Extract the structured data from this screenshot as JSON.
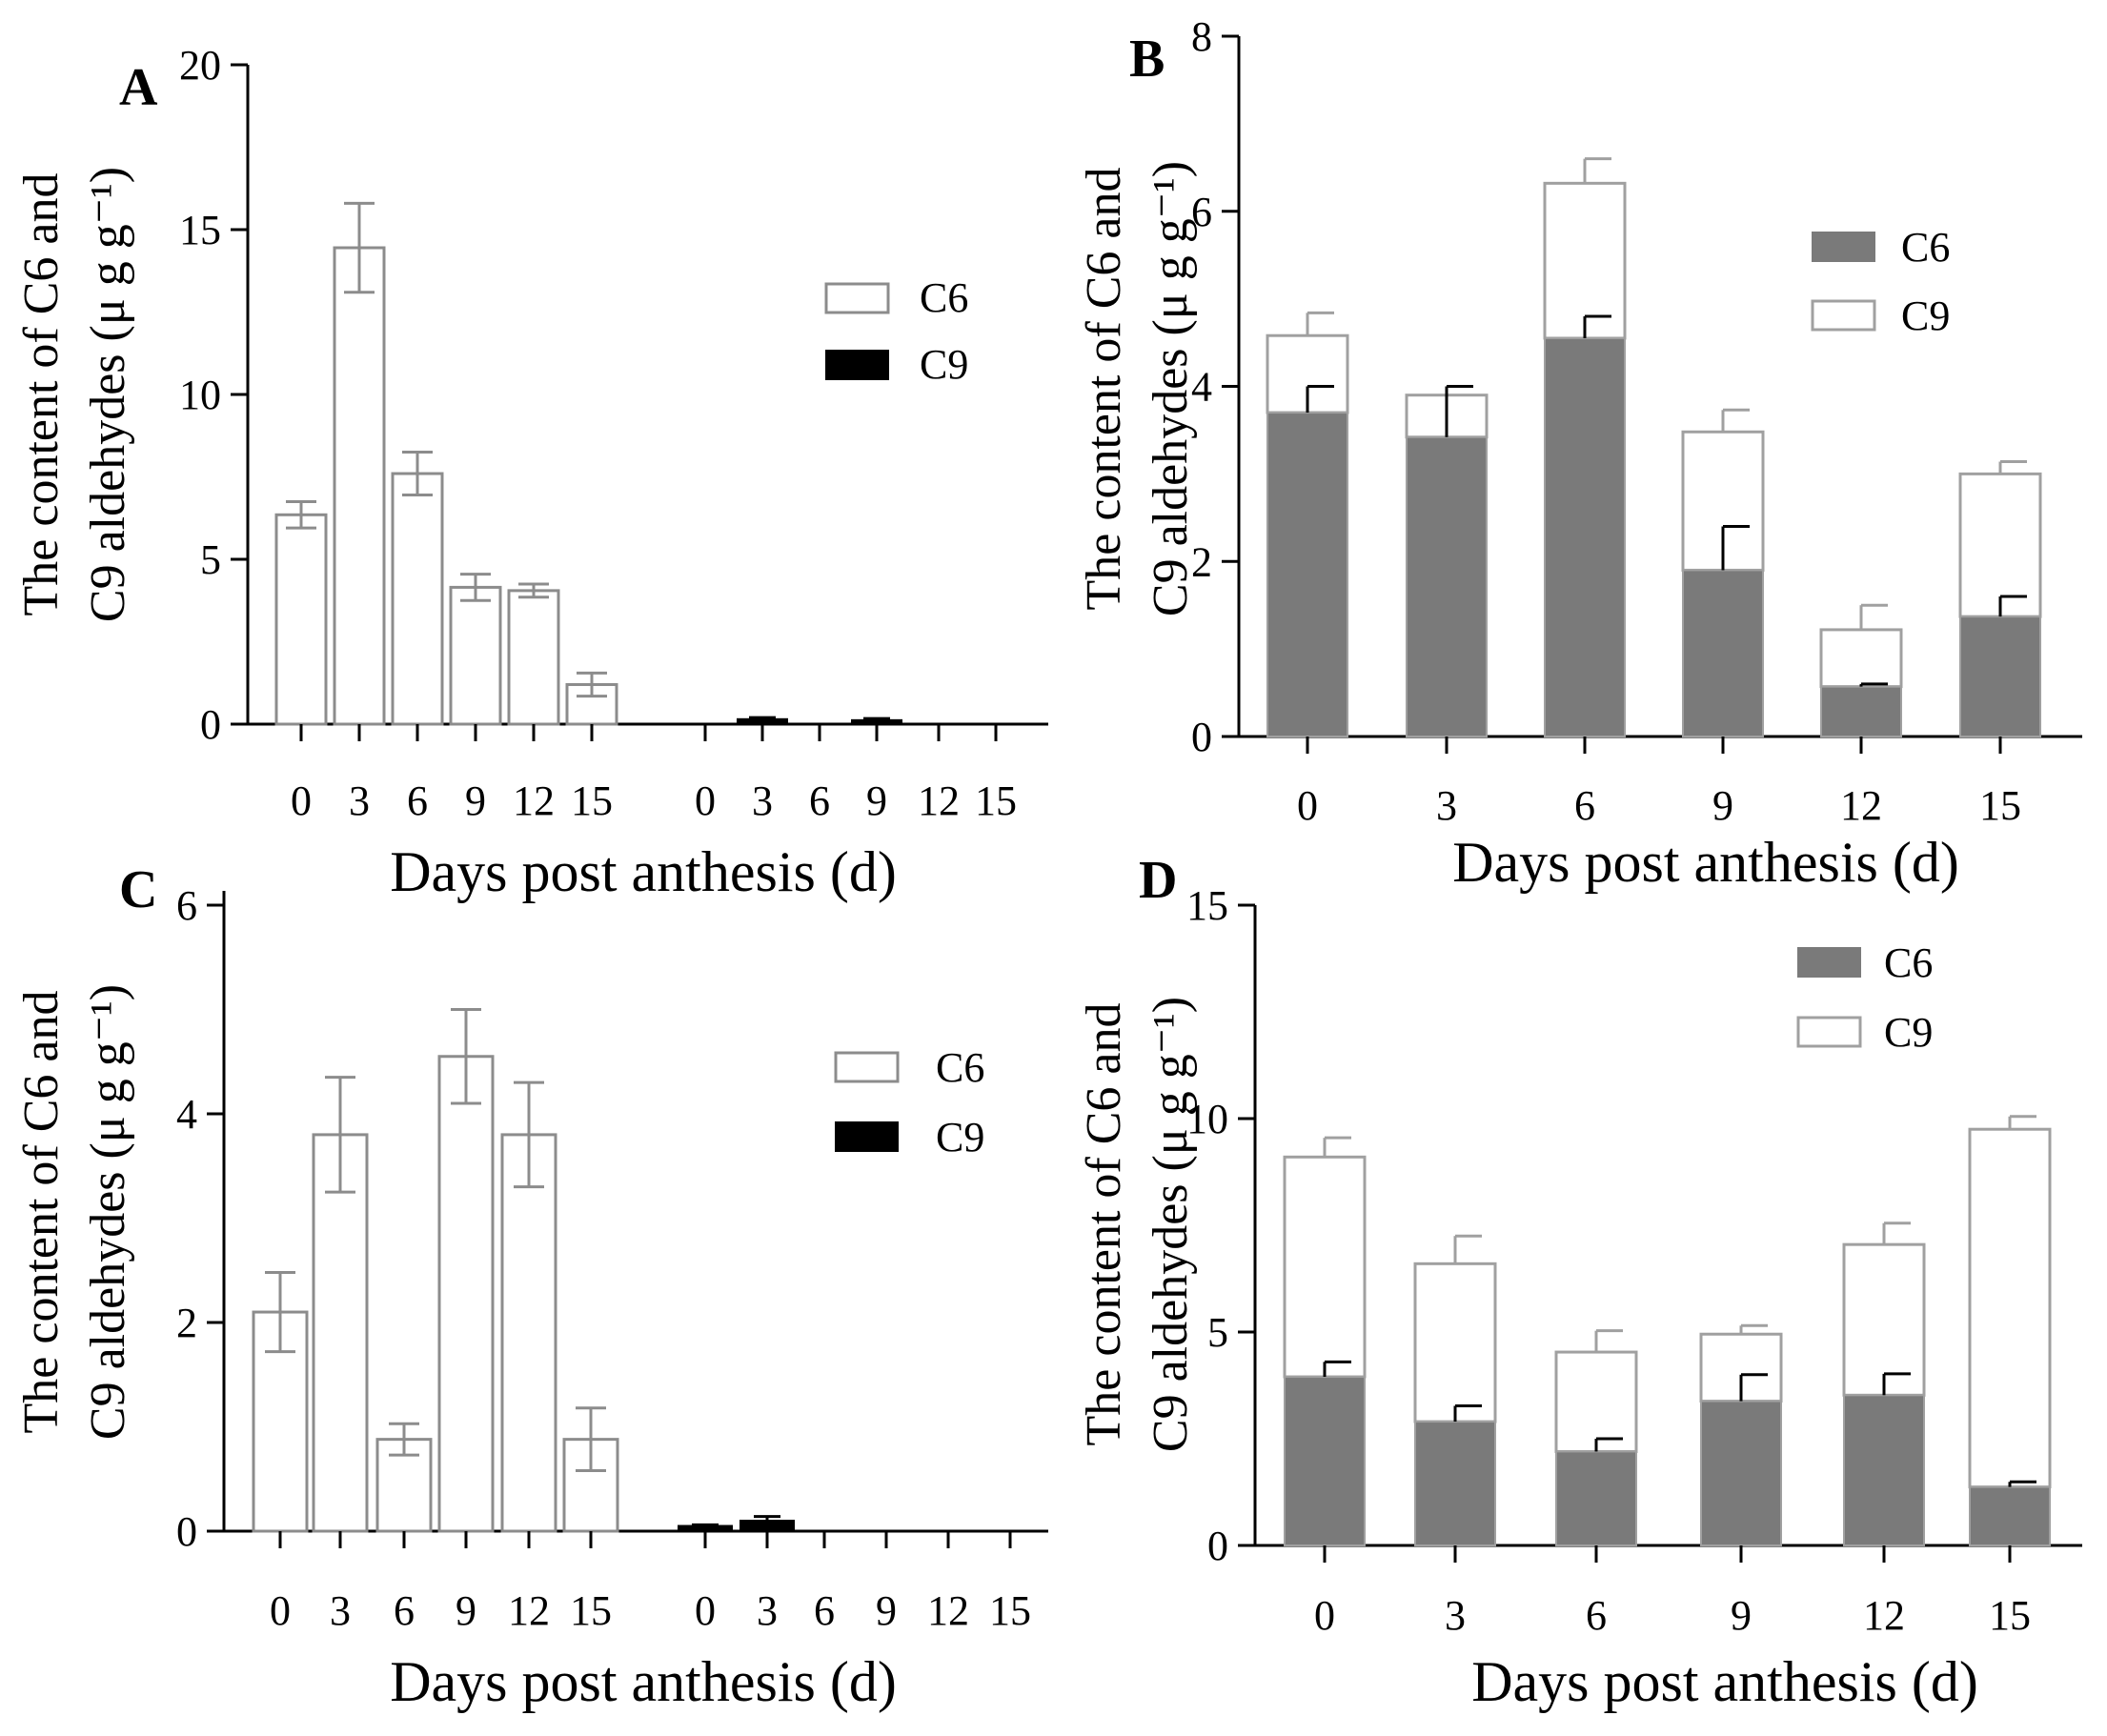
{
  "chart_data": [
    {
      "panel": "A",
      "type": "bar",
      "mode": "grouped",
      "title": "",
      "xlabel": "Days post anthesis (d)",
      "ylabel_line1": "The content of C6 and",
      "ylabel_line2": "C9 aldehydes (μ g g⁻¹)",
      "ylim": [
        0,
        20
      ],
      "yticks": [
        0,
        5,
        10,
        15,
        20
      ],
      "categories": [
        "0",
        "3",
        "6",
        "9",
        "12",
        "15"
      ],
      "series": [
        {
          "name": "C6",
          "values": [
            6.35,
            14.45,
            7.6,
            4.15,
            4.05,
            1.2
          ],
          "errors": [
            0.4,
            1.35,
            0.65,
            0.4,
            0.2,
            0.35
          ]
        },
        {
          "name": "C9",
          "values": [
            0,
            0.15,
            0,
            0.12,
            0,
            0
          ],
          "errors": [
            0,
            0.05,
            0,
            0.05,
            0,
            0
          ]
        }
      ],
      "legend": [
        "C6",
        "C9"
      ]
    },
    {
      "panel": "B",
      "type": "bar",
      "mode": "stacked",
      "title": "",
      "xlabel": "Days post anthesis (d)",
      "ylabel_line1": "The content of C6 and",
      "ylabel_line2": "C9 aldehydes (μ g g⁻¹)",
      "ylim": [
        0,
        8
      ],
      "yticks": [
        0,
        2,
        4,
        6,
        8
      ],
      "categories": [
        "0",
        "3",
        "6",
        "9",
        "12",
        "15"
      ],
      "series": [
        {
          "name": "C6",
          "values": [
            3.7,
            3.42,
            4.55,
            1.9,
            0.57,
            1.37
          ],
          "errors": [
            0.3,
            0.58,
            0.25,
            0.5,
            0.03,
            0.23
          ]
        },
        {
          "name": "C9",
          "values": [
            0.88,
            0.48,
            1.77,
            1.58,
            0.65,
            1.63
          ],
          "errors": [
            0.26,
            0.1,
            0.28,
            0.25,
            0.28,
            0.14
          ]
        }
      ],
      "legend": [
        "C6",
        "C9"
      ]
    },
    {
      "panel": "C",
      "type": "bar",
      "mode": "grouped",
      "title": "",
      "xlabel": "Days post anthesis (d)",
      "ylabel_line1": "The content of C6 and",
      "ylabel_line2": "C9 aldehydes (μ g g⁻¹)",
      "ylim": [
        0,
        6
      ],
      "yticks": [
        0,
        2,
        4,
        6
      ],
      "categories": [
        "0",
        "3",
        "6",
        "9",
        "12",
        "15"
      ],
      "series": [
        {
          "name": "C6",
          "values": [
            2.1,
            3.8,
            0.88,
            4.55,
            3.8,
            0.88
          ],
          "errors": [
            0.38,
            0.55,
            0.15,
            0.45,
            0.5,
            0.3
          ]
        },
        {
          "name": "C9",
          "values": [
            0.05,
            0.1,
            0,
            0,
            0,
            0
          ],
          "errors": [
            0.01,
            0.04,
            0,
            0,
            0,
            0
          ]
        }
      ],
      "legend": [
        "C6",
        "C9"
      ]
    },
    {
      "panel": "D",
      "type": "bar",
      "mode": "stacked",
      "title": "",
      "xlabel": "Days post anthesis (d)",
      "ylabel_line1": "The content of C6 and",
      "ylabel_line2": "C9 aldehydes (μ g g⁻¹)",
      "ylim": [
        0,
        15
      ],
      "yticks": [
        0,
        5,
        10,
        15
      ],
      "categories": [
        "0",
        "3",
        "6",
        "9",
        "12",
        "15"
      ],
      "series": [
        {
          "name": "C6",
          "values": [
            3.95,
            2.9,
            2.2,
            3.38,
            3.52,
            1.37
          ],
          "errors": [
            0.35,
            0.37,
            0.3,
            0.62,
            0.5,
            0.12
          ]
        },
        {
          "name": "C9",
          "values": [
            5.15,
            3.7,
            2.33,
            1.57,
            3.53,
            8.38
          ],
          "errors": [
            0.45,
            0.65,
            0.5,
            0.2,
            0.5,
            0.3
          ]
        }
      ],
      "legend": [
        "C6",
        "C9"
      ]
    }
  ],
  "colors": {
    "c6_grouped_edge": "#8c8c8c",
    "c9_grouped_fill": "#000000",
    "stacked_c6_fill": "#7a7a7a",
    "stacked_c9_edge": "#a0a0a0",
    "axis": "#000000"
  }
}
